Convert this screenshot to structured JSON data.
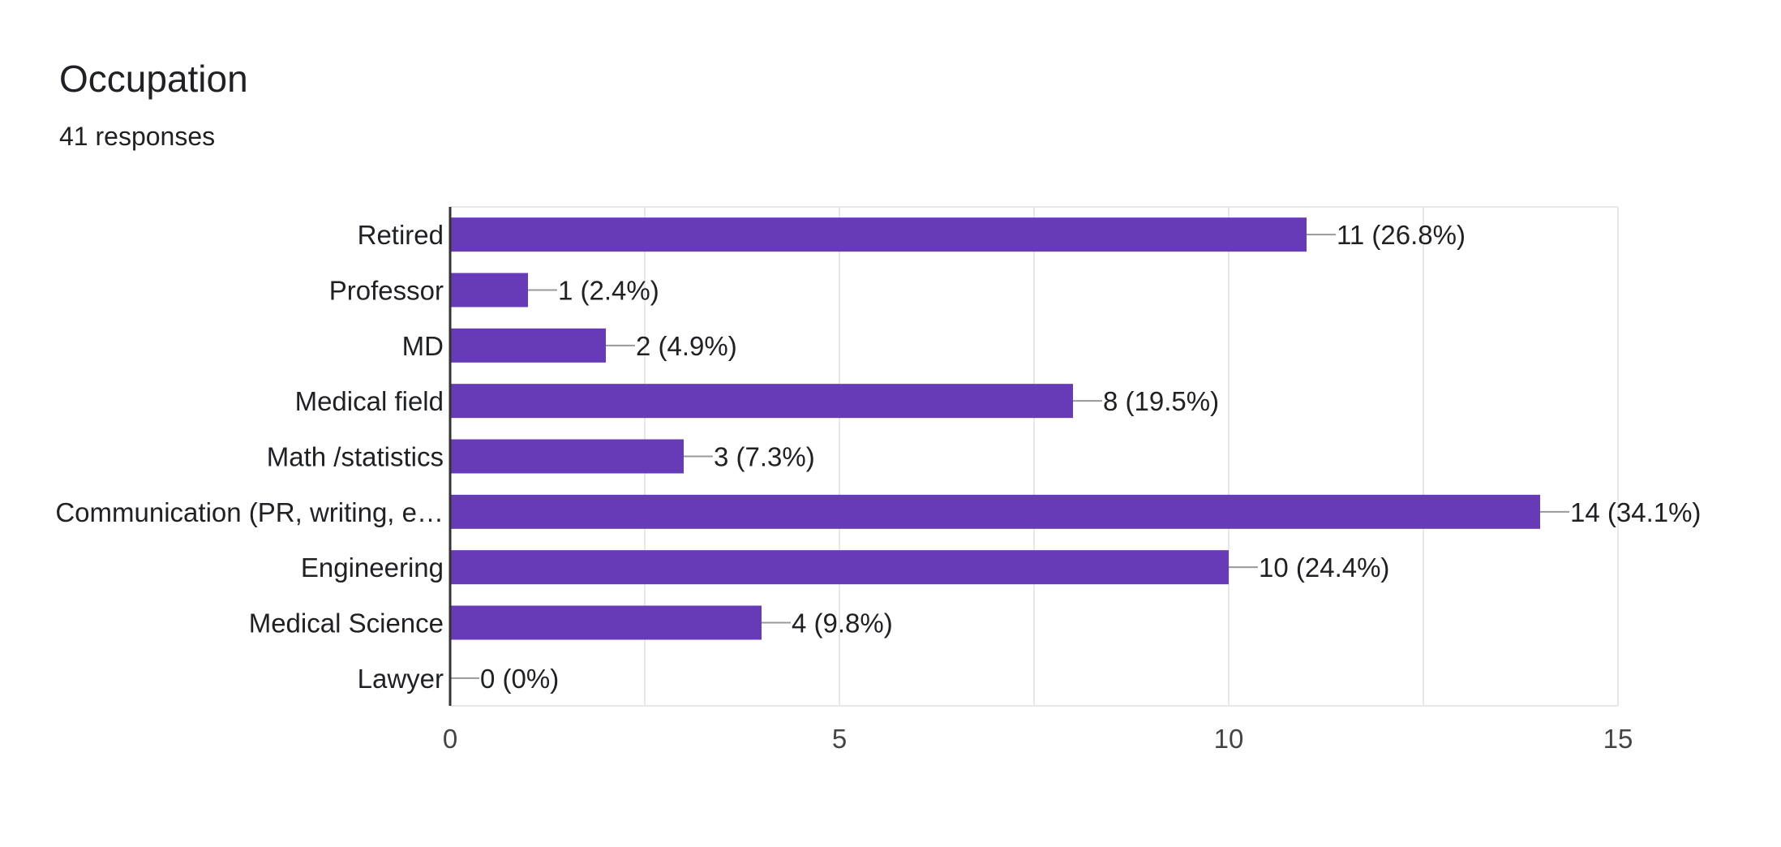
{
  "header": {
    "title": "Occupation",
    "subtitle": "41 responses"
  },
  "chart_data": {
    "type": "bar",
    "orientation": "horizontal",
    "title": "Occupation",
    "subtitle": "41 responses",
    "categories": [
      "Retired",
      "Professor",
      "MD",
      "Medical field",
      "Math /statistics",
      "Communication (PR, writing, e…",
      "Engineering",
      "Medical Science",
      "Lawyer"
    ],
    "values": [
      11,
      1,
      2,
      8,
      3,
      14,
      10,
      4,
      0
    ],
    "data_labels": [
      "11 (26.8%)",
      "1 (2.4%)",
      "2 (4.9%)",
      "8 (19.5%)",
      "3 (7.3%)",
      "14 (34.1%)",
      "10 (24.4%)",
      "4 (9.8%)",
      "0 (0%)"
    ],
    "xlim": [
      0,
      15
    ],
    "x_ticks": [
      0,
      5,
      10,
      15
    ],
    "x_tick_labels": [
      "0",
      "5",
      "10",
      "15"
    ],
    "grid": true,
    "legend": "none",
    "bar_color": "#673ab7",
    "grid_color": "#e8e8e8",
    "axis_color": "#333333",
    "leader_color": "#999999"
  }
}
